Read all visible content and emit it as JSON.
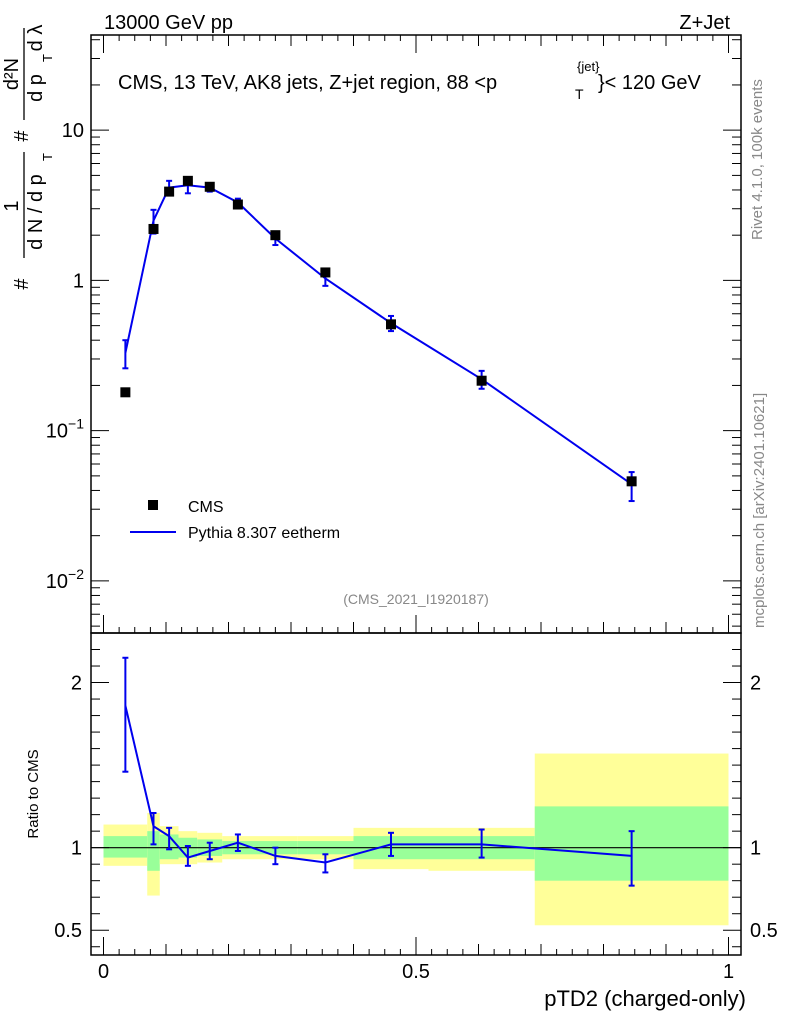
{
  "header": {
    "left": "13000 GeV pp",
    "right": "Z+Jet"
  },
  "title": {
    "main": "CMS, 13 TeV, AK8 jets, Z+jet region, 88 <p",
    "sup": "{jet}",
    "sub": "T",
    "tail": "}< 120 GeV"
  },
  "side_labels": {
    "rivet": "Rivet 4.1.0,  100k events",
    "site": "mcplots.cern.ch [arXiv:2401.10621]"
  },
  "analysis_tag": "(CMS_2021_I1920187)",
  "y_axis_label_main": {
    "hash1": "#",
    "num1": "1",
    "den1": "d N / d p",
    "sub1": "T",
    "hash2": "#",
    "num2": "d²N",
    "den2": "d p",
    "sub2": "T",
    "lambda": "d λ"
  },
  "legend": {
    "data_label": "CMS",
    "mc_label": "Pythia 8.307 eetherm"
  },
  "ratio_axis_label": "Ratio to CMS",
  "x_axis_label": "pTD2 (charged-only)",
  "chart_data": [
    {
      "type": "scatter",
      "role": "main",
      "yscale": "log",
      "xlim": [
        -0.02,
        1.02
      ],
      "ylim": [
        0.0045,
        43
      ],
      "y_ticks": [
        {
          "value": 0.01,
          "label": "10",
          "sup": "−2"
        },
        {
          "value": 0.1,
          "label": "10",
          "sup": "−1"
        },
        {
          "value": 1,
          "label": "1",
          "sup": ""
        },
        {
          "value": 10,
          "label": "10",
          "sup": ""
        }
      ],
      "series": [
        {
          "name": "CMS",
          "color": "#000000",
          "x": [
            0.035,
            0.08,
            0.105,
            0.135,
            0.17,
            0.215,
            0.275,
            0.355,
            0.46,
            0.605,
            0.845
          ],
          "values": [
            0.18,
            2.2,
            3.9,
            4.6,
            4.2,
            3.2,
            2.0,
            1.13,
            0.51,
            0.215,
            0.046
          ]
        },
        {
          "name": "Pythia 8.307 eetherm",
          "color": "#0000ee",
          "x": [
            0.035,
            0.08,
            0.105,
            0.135,
            0.17,
            0.215,
            0.275,
            0.355,
            0.46,
            0.605,
            0.845
          ],
          "values": [
            0.33,
            2.5,
            4.15,
            4.3,
            4.15,
            3.3,
            1.9,
            1.03,
            0.52,
            0.22,
            0.044
          ],
          "err_low": [
            0.26,
            2.05,
            3.75,
            3.8,
            3.9,
            3.1,
            1.72,
            0.92,
            0.46,
            0.19,
            0.034
          ],
          "err_high": [
            0.4,
            2.95,
            4.6,
            4.8,
            4.45,
            3.5,
            2.08,
            1.14,
            0.58,
            0.25,
            0.053
          ]
        }
      ]
    },
    {
      "type": "line",
      "role": "ratio",
      "xlim": [
        -0.02,
        1.02
      ],
      "ylim": [
        0.35,
        2.3
      ],
      "y_ticks": [
        {
          "value": 0.5,
          "label": "0.5"
        },
        {
          "value": 1,
          "label": "1"
        },
        {
          "value": 2,
          "label": "2"
        }
      ],
      "x_ticks": [
        {
          "value": 0,
          "label": "0"
        },
        {
          "value": 0.5,
          "label": "0.5"
        },
        {
          "value": 1,
          "label": "1"
        }
      ],
      "bands": {
        "edges": [
          0,
          0.07,
          0.09,
          0.12,
          0.15,
          0.19,
          0.24,
          0.31,
          0.4,
          0.52,
          0.69,
          1.0
        ],
        "inner_low": [
          0.94,
          0.86,
          0.93,
          0.94,
          0.95,
          0.96,
          0.96,
          0.96,
          0.93,
          0.93,
          0.8
        ],
        "inner_high": [
          1.07,
          1.1,
          1.08,
          1.06,
          1.05,
          1.04,
          1.04,
          1.04,
          1.07,
          1.07,
          1.25
        ],
        "outer_low": [
          0.89,
          0.71,
          0.9,
          0.9,
          0.91,
          0.93,
          0.93,
          0.93,
          0.87,
          0.86,
          0.53
        ],
        "outer_high": [
          1.14,
          1.21,
          1.13,
          1.1,
          1.09,
          1.07,
          1.07,
          1.07,
          1.12,
          1.12,
          1.57
        ],
        "inner_color": "#99ff99",
        "outer_color": "#ffff99"
      },
      "reference_line": 1.0,
      "series": [
        {
          "name": "Pythia 8.307 eetherm / CMS",
          "color": "#0000ee",
          "x": [
            0.035,
            0.08,
            0.105,
            0.135,
            0.17,
            0.215,
            0.275,
            0.355,
            0.46,
            0.605,
            0.845
          ],
          "values": [
            1.86,
            1.13,
            1.07,
            0.94,
            0.98,
            1.03,
            0.95,
            0.91,
            1.02,
            1.02,
            0.95
          ],
          "err_low": [
            1.46,
            1.02,
            0.99,
            0.89,
            0.93,
            0.98,
            0.9,
            0.85,
            0.95,
            0.94,
            0.77
          ],
          "err_high": [
            2.15,
            1.21,
            1.12,
            1.01,
            1.03,
            1.08,
            1.0,
            0.96,
            1.09,
            1.11,
            1.1
          ]
        }
      ]
    }
  ]
}
